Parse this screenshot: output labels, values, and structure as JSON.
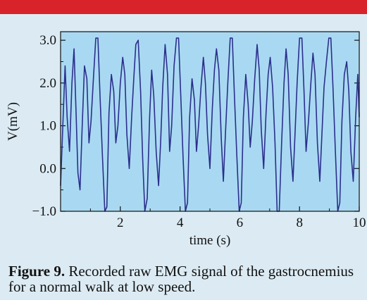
{
  "caption": {
    "label": "Figure 9.",
    "text": " Recorded raw EMG signal of the gastrocnemius for a normal walk at low speed."
  },
  "colors": {
    "banner": "#d9232b",
    "background": "#dcebf3",
    "plot_background": "#a9d9f2",
    "line": "#2b2f8c"
  },
  "chart_data": {
    "type": "line",
    "title": "",
    "xlabel": "time (s)",
    "ylabel": "V(mV)",
    "xlim": [
      0,
      10
    ],
    "ylim": [
      -1.0,
      3.2
    ],
    "xticks": [
      2,
      4,
      6,
      8,
      10
    ],
    "xtick_labels": [
      "2",
      "4",
      "6",
      "8",
      "10"
    ],
    "yticks": [
      -1.0,
      0.0,
      1.0,
      2.0,
      3.0
    ],
    "ytick_labels": [
      "−1.0",
      "0.0",
      "1.0",
      "2.0",
      "3.0"
    ],
    "grid": false,
    "legend": "none",
    "series": [
      {
        "x": [
          0.0,
          0.08,
          0.15,
          0.22,
          0.3,
          0.38,
          0.45,
          0.52,
          0.58,
          0.65,
          0.72,
          0.8,
          0.88,
          0.95,
          1.02,
          1.1,
          1.18,
          1.25,
          1.32,
          1.4,
          1.48,
          1.55,
          1.62,
          1.7,
          1.78,
          1.85,
          1.92,
          2.0,
          2.08,
          2.15,
          2.22,
          2.3,
          2.38,
          2.45,
          2.52,
          2.6,
          2.68,
          2.75,
          2.82,
          2.9,
          2.98,
          3.05,
          3.12,
          3.2,
          3.28,
          3.35,
          3.42,
          3.5,
          3.58,
          3.65,
          3.72,
          3.8,
          3.88,
          3.95,
          4.02,
          4.1,
          4.18,
          4.25,
          4.32,
          4.4,
          4.48,
          4.55,
          4.62,
          4.7,
          4.78,
          4.85,
          4.92,
          5.0,
          5.08,
          5.15,
          5.22,
          5.3,
          5.38,
          5.45,
          5.52,
          5.6,
          5.68,
          5.75,
          5.82,
          5.9,
          5.98,
          6.05,
          6.12,
          6.2,
          6.28,
          6.35,
          6.42,
          6.5,
          6.58,
          6.65,
          6.72,
          6.8,
          6.88,
          6.95,
          7.02,
          7.1,
          7.18,
          7.25,
          7.32,
          7.4,
          7.48,
          7.55,
          7.62,
          7.7,
          7.78,
          7.85,
          7.92,
          8.0,
          8.08,
          8.15,
          8.22,
          8.3,
          8.38,
          8.45,
          8.52,
          8.6,
          8.68,
          8.75,
          8.82,
          8.9,
          8.98,
          9.05,
          9.12,
          9.2,
          9.28,
          9.35,
          9.42,
          9.5,
          9.58,
          9.65,
          9.72,
          9.8,
          9.88,
          9.95,
          10.0
        ],
        "values": [
          -0.4,
          1.1,
          2.4,
          1.2,
          0.4,
          2.0,
          2.8,
          1.3,
          -0.1,
          -0.5,
          0.9,
          2.4,
          2.1,
          0.6,
          1.1,
          2.1,
          3.05,
          3.05,
          1.7,
          0.3,
          -1.0,
          -0.9,
          1.3,
          2.2,
          1.8,
          0.6,
          1.0,
          2.0,
          2.6,
          2.2,
          0.8,
          0.0,
          1.2,
          2.1,
          2.9,
          3.0,
          1.8,
          0.2,
          -1.0,
          -0.7,
          1.2,
          2.3,
          1.7,
          0.4,
          -0.4,
          0.6,
          1.9,
          2.9,
          2.2,
          0.4,
          1.0,
          2.4,
          3.05,
          3.05,
          1.8,
          0.3,
          -1.0,
          -0.8,
          1.2,
          2.1,
          1.6,
          0.4,
          1.0,
          1.9,
          2.6,
          2.0,
          0.8,
          0.0,
          1.4,
          2.3,
          2.8,
          2.3,
          0.7,
          -0.3,
          0.8,
          2.0,
          3.05,
          3.05,
          1.7,
          0.3,
          -1.0,
          -0.8,
          1.2,
          2.2,
          1.5,
          0.5,
          1.1,
          2.1,
          2.9,
          2.3,
          0.9,
          0.0,
          1.3,
          2.2,
          2.6,
          1.9,
          0.6,
          -1.0,
          -1.0,
          0.6,
          2.0,
          2.8,
          2.2,
          0.5,
          -0.3,
          0.8,
          2.0,
          3.05,
          3.05,
          1.8,
          0.4,
          1.1,
          2.0,
          2.7,
          2.2,
          0.6,
          -0.3,
          0.8,
          1.9,
          2.5,
          3.05,
          3.05,
          1.9,
          0.4,
          -1.0,
          -0.8,
          1.1,
          2.2,
          2.5,
          1.8,
          0.4,
          -0.3,
          1.2,
          2.2,
          1.2
        ]
      }
    ]
  }
}
